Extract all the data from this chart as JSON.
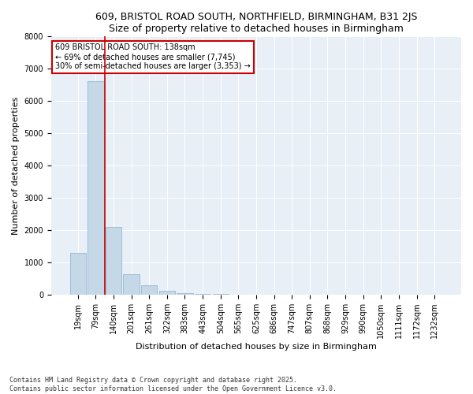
{
  "title1": "609, BRISTOL ROAD SOUTH, NORTHFIELD, BIRMINGHAM, B31 2JS",
  "title2": "Size of property relative to detached houses in Birmingham",
  "xlabel": "Distribution of detached houses by size in Birmingham",
  "ylabel": "Number of detached properties",
  "footer": "Contains HM Land Registry data © Crown copyright and database right 2025.\nContains public sector information licensed under the Open Government Licence v3.0.",
  "bar_color": "#c5d8e8",
  "bar_edge_color": "#8ab0cc",
  "bg_color": "#e8eff6",
  "grid_color": "#ffffff",
  "annotation_text": "609 BRISTOL ROAD SOUTH: 138sqm\n← 69% of detached houses are smaller (7,745)\n30% of semi-detached houses are larger (3,353) →",
  "vline_color": "#cc0000",
  "vline_pos": 1.5,
  "categories": [
    "19sqm",
    "79sqm",
    "140sqm",
    "201sqm",
    "261sqm",
    "322sqm",
    "383sqm",
    "443sqm",
    "504sqm",
    "565sqm",
    "625sqm",
    "686sqm",
    "747sqm",
    "807sqm",
    "868sqm",
    "929sqm",
    "990sqm",
    "1050sqm",
    "1111sqm",
    "1172sqm",
    "1232sqm"
  ],
  "values": [
    1300,
    6600,
    2100,
    650,
    300,
    130,
    50,
    30,
    40,
    0,
    0,
    0,
    0,
    0,
    0,
    0,
    0,
    0,
    0,
    0,
    0
  ],
  "ylim": [
    0,
    8000
  ],
  "yticks": [
    0,
    1000,
    2000,
    3000,
    4000,
    5000,
    6000,
    7000,
    8000
  ],
  "title1_fontsize": 9,
  "title2_fontsize": 8,
  "ylabel_fontsize": 8,
  "xlabel_fontsize": 8,
  "tick_fontsize": 7
}
